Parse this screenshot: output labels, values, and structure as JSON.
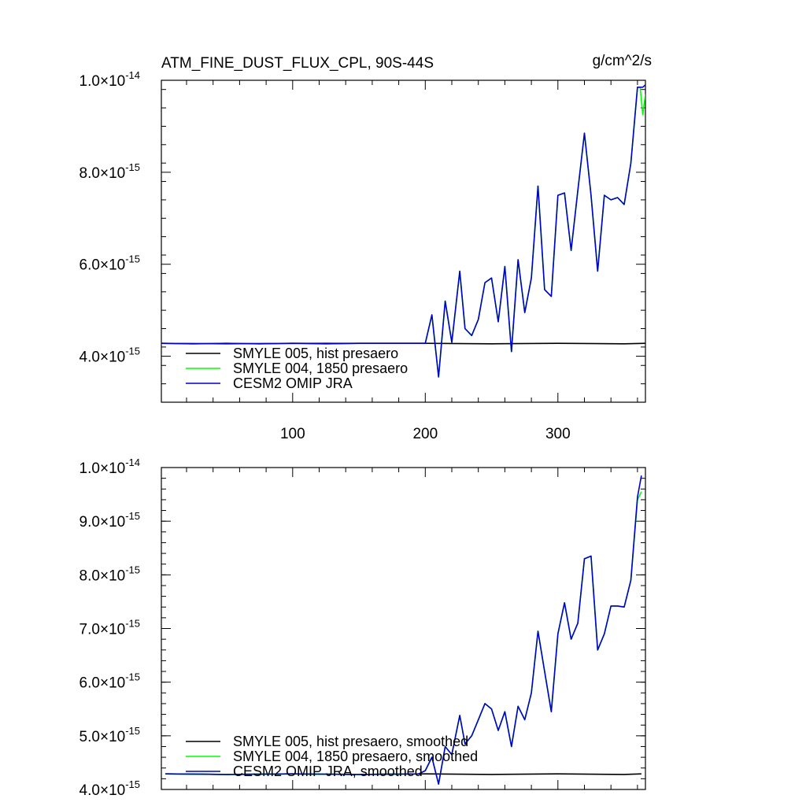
{
  "colors": {
    "hist": "#000000",
    "p1850": "#00ff00",
    "jra": "#0000cc"
  },
  "header": {
    "title": "ATM_FINE_DUST_FLUX_CPL, 90S-44S",
    "units": "g/cm^2/s"
  },
  "chart_data": [
    {
      "type": "line",
      "title": "ATM_FINE_DUST_FLUX_CPL, 90S-44S",
      "units": "g/cm^2/s",
      "xlim": [
        1,
        366
      ],
      "ylim": [
        3e-15,
        1e-14
      ],
      "x_ticks": [
        100,
        200,
        300
      ],
      "x_tick_labels": [
        "100",
        "200",
        "300"
      ],
      "y_ticks": [
        {
          "value": 4e-15,
          "mantissa": "4.0",
          "times": "×10",
          "exp": "-15"
        },
        {
          "value": 6e-15,
          "mantissa": "6.0",
          "times": "×10",
          "exp": "-15"
        },
        {
          "value": 8e-15,
          "mantissa": "8.0",
          "times": "×10",
          "exp": "-15"
        },
        {
          "value": 1e-14,
          "mantissa": "1.0",
          "times": "×10",
          "exp": "-14"
        }
      ],
      "legend": [
        {
          "label": "SMYLE 005, hist presaero",
          "color": "#000000"
        },
        {
          "label": "SMYLE 004, 1850 presaero",
          "color": "#00ff00"
        },
        {
          "label": "CESM2 OMIP JRA",
          "color": "#0000cc"
        }
      ],
      "legend_position": "bottom-left",
      "series": [
        {
          "x": [
            1,
            50,
            100,
            150,
            200,
            250,
            300,
            350,
            366
          ],
          "y": [
            4.28e-15,
            4.27e-15,
            4.28e-15,
            4.28e-15,
            4.28e-15,
            4.27e-15,
            4.28e-15,
            4.27e-15,
            4.28e-15
          ]
        },
        {
          "x": [
            1,
            25,
            50,
            75,
            100,
            125,
            150,
            175,
            200,
            205,
            210,
            215,
            220,
            226,
            230,
            235,
            240,
            245,
            250,
            255,
            260,
            265,
            270,
            275,
            280,
            285,
            290,
            295,
            300,
            305,
            310,
            315,
            320,
            325,
            330,
            335,
            340,
            345,
            350,
            355,
            360,
            362,
            364,
            366
          ],
          "y": [
            4.28e-15,
            4.27e-15,
            4.28e-15,
            4.27e-15,
            4.28e-15,
            4.27e-15,
            4.28e-15,
            4.28e-15,
            4.28e-15,
            4.9e-15,
            3.55e-15,
            5.2e-15,
            4.3e-15,
            5.85e-15,
            4.6e-15,
            4.45e-15,
            4.8e-15,
            5.6e-15,
            5.7e-15,
            4.75e-15,
            5.95e-15,
            4.1e-15,
            6.1e-15,
            4.95e-15,
            5.7e-15,
            7.7e-15,
            5.45e-15,
            5.3e-15,
            7.5e-15,
            7.55e-15,
            6.3e-15,
            7.6e-15,
            8.85e-15,
            7.5e-15,
            5.85e-15,
            7.5e-15,
            7.4e-15,
            7.45e-15,
            7.3e-15,
            8.2e-15,
            9.85e-15,
            9.85e-15,
            9.25e-15,
            9.7e-15
          ]
        },
        {
          "x": [
            1,
            25,
            50,
            75,
            100,
            125,
            150,
            175,
            200,
            205,
            210,
            215,
            220,
            226,
            230,
            235,
            240,
            245,
            250,
            255,
            260,
            265,
            270,
            275,
            280,
            285,
            290,
            295,
            300,
            305,
            310,
            315,
            320,
            325,
            330,
            335,
            340,
            345,
            350,
            355,
            360,
            362,
            364,
            366
          ],
          "y": [
            4.28e-15,
            4.27e-15,
            4.28e-15,
            4.27e-15,
            4.28e-15,
            4.27e-15,
            4.28e-15,
            4.28e-15,
            4.28e-15,
            4.9e-15,
            3.55e-15,
            5.2e-15,
            4.3e-15,
            5.85e-15,
            4.6e-15,
            4.45e-15,
            4.8e-15,
            5.6e-15,
            5.7e-15,
            4.75e-15,
            5.95e-15,
            4.1e-15,
            6.1e-15,
            4.95e-15,
            5.7e-15,
            7.7e-15,
            5.45e-15,
            5.3e-15,
            7.5e-15,
            7.55e-15,
            6.3e-15,
            7.6e-15,
            8.85e-15,
            7.5e-15,
            5.85e-15,
            7.5e-15,
            7.4e-15,
            7.45e-15,
            7.3e-15,
            8.2e-15,
            9.85e-15,
            9.85e-15,
            9.85e-15,
            9.9e-15
          ]
        }
      ]
    },
    {
      "type": "line",
      "xlim": [
        1,
        366
      ],
      "ylim": [
        4e-15,
        1e-14
      ],
      "x_ticks": [
        100,
        200,
        300
      ],
      "y_ticks": [
        {
          "value": 4e-15,
          "mantissa": "4.0",
          "times": "×10",
          "exp": "-15"
        },
        {
          "value": 5e-15,
          "mantissa": "5.0",
          "times": "×10",
          "exp": "-15"
        },
        {
          "value": 6e-15,
          "mantissa": "6.0",
          "times": "×10",
          "exp": "-15"
        },
        {
          "value": 7e-15,
          "mantissa": "7.0",
          "times": "×10",
          "exp": "-15"
        },
        {
          "value": 8e-15,
          "mantissa": "8.0",
          "times": "×10",
          "exp": "-15"
        },
        {
          "value": 9e-15,
          "mantissa": "9.0",
          "times": "×10",
          "exp": "-15"
        },
        {
          "value": 1e-14,
          "mantissa": "1.0",
          "times": "×10",
          "exp": "-14"
        }
      ],
      "legend": [
        {
          "label": "SMYLE 005, hist presaero, smoothed",
          "color": "#000000"
        },
        {
          "label": "SMYLE 004, 1850 presaero, smoothed",
          "color": "#00ff00"
        },
        {
          "label": "CESM2 OMIP JRA, smoothed",
          "color": "#0000cc"
        }
      ],
      "legend_position": "bottom-left",
      "series": [
        {
          "x": [
            4,
            50,
            100,
            150,
            200,
            250,
            300,
            350,
            363
          ],
          "y": [
            4.29e-15,
            4.28e-15,
            4.29e-15,
            4.28e-15,
            4.29e-15,
            4.28e-15,
            4.29e-15,
            4.28e-15,
            4.29e-15
          ]
        },
        {
          "x": [
            4,
            50,
            100,
            150,
            195,
            200,
            205,
            210,
            215,
            220,
            226,
            230,
            235,
            240,
            245,
            250,
            255,
            260,
            265,
            270,
            275,
            280,
            285,
            290,
            295,
            300,
            305,
            310,
            315,
            320,
            325,
            330,
            335,
            340,
            345,
            350,
            355,
            360,
            363
          ],
          "y": [
            4.29e-15,
            4.28e-15,
            4.29e-15,
            4.28e-15,
            4.29e-15,
            4.35e-15,
            4.6e-15,
            4.1e-15,
            4.8e-15,
            4.65e-15,
            5.38e-15,
            4.85e-15,
            5e-15,
            5.3e-15,
            5.6e-15,
            5.5e-15,
            5.1e-15,
            5.45e-15,
            4.8e-15,
            5.55e-15,
            5.3e-15,
            5.8e-15,
            6.95e-15,
            6.2e-15,
            5.45e-15,
            6.9e-15,
            7.48e-15,
            6.8e-15,
            7.1e-15,
            8.3e-15,
            8.35e-15,
            6.6e-15,
            6.9e-15,
            7.42e-15,
            7.42e-15,
            7.4e-15,
            7.9e-15,
            9.4e-15,
            9.55e-15
          ]
        },
        {
          "x": [
            4,
            50,
            100,
            150,
            195,
            200,
            205,
            210,
            215,
            220,
            226,
            230,
            235,
            240,
            245,
            250,
            255,
            260,
            265,
            270,
            275,
            280,
            285,
            290,
            295,
            300,
            305,
            310,
            315,
            320,
            325,
            330,
            335,
            340,
            345,
            350,
            355,
            360,
            363
          ],
          "y": [
            4.29e-15,
            4.28e-15,
            4.29e-15,
            4.28e-15,
            4.29e-15,
            4.35e-15,
            4.6e-15,
            4.1e-15,
            4.8e-15,
            4.65e-15,
            5.38e-15,
            4.85e-15,
            5e-15,
            5.3e-15,
            5.6e-15,
            5.5e-15,
            5.1e-15,
            5.45e-15,
            4.8e-15,
            5.55e-15,
            5.3e-15,
            5.8e-15,
            6.95e-15,
            6.2e-15,
            5.45e-15,
            6.9e-15,
            7.48e-15,
            6.8e-15,
            7.1e-15,
            8.3e-15,
            8.35e-15,
            6.6e-15,
            6.9e-15,
            7.42e-15,
            7.42e-15,
            7.4e-15,
            7.9e-15,
            9.45e-15,
            9.85e-15
          ]
        }
      ]
    }
  ]
}
